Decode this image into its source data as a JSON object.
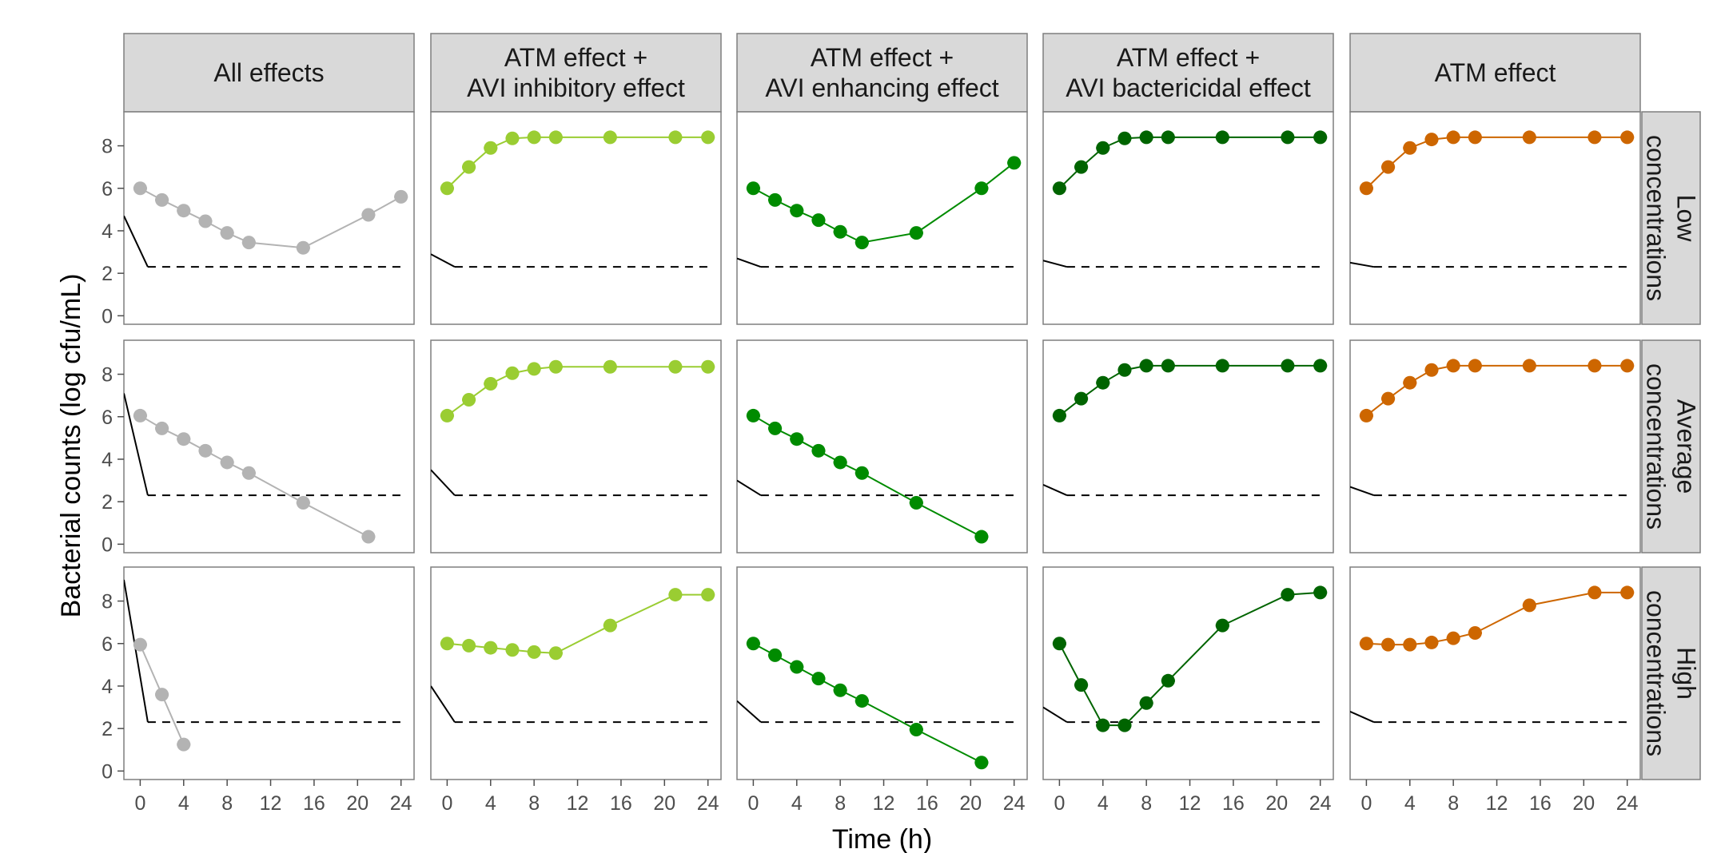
{
  "chart_data": {
    "type": "line",
    "xlabel": "Time (h)",
    "ylabel": "Bacterial counts (log cfu/mL)",
    "xlim": [
      -1.5,
      25.2
    ],
    "ylim": [
      -0.4,
      9.6
    ],
    "x_ticks": [
      0,
      4,
      8,
      12,
      16,
      20,
      24
    ],
    "y_ticks": [
      0,
      2,
      4,
      6,
      8
    ],
    "grid": false,
    "columns": [
      {
        "title_lines": [
          "All effects"
        ],
        "color": "#b3b3b3"
      },
      {
        "title_lines": [
          "ATM effect +",
          "AVI inhibitory effect"
        ],
        "color": "#9acd32"
      },
      {
        "title_lines": [
          "ATM effect +",
          "AVI enhancing effect"
        ],
        "color": "#008b00"
      },
      {
        "title_lines": [
          "ATM effect +",
          "AVI bactericidal effect"
        ],
        "color": "#006400"
      },
      {
        "title_lines": [
          "ATM effect"
        ],
        "color": "#cd6600"
      }
    ],
    "rows": [
      {
        "title_lines": [
          "Low",
          "concentrations"
        ]
      },
      {
        "title_lines": [
          "Average",
          "concentrations"
        ]
      },
      {
        "title_lines": [
          "High",
          "concentrations"
        ]
      }
    ],
    "detection_limit": 2.3,
    "x_times": [
      0,
      2,
      4,
      6,
      8,
      10,
      15,
      21,
      24
    ],
    "panels": [
      {
        "row": 0,
        "col": 0,
        "x": [
          0,
          2,
          4,
          6,
          8,
          10,
          15,
          21,
          24
        ],
        "y": [
          6.0,
          5.45,
          4.95,
          4.45,
          3.9,
          3.45,
          3.2,
          4.75,
          5.6
        ],
        "pk_line": [
          [
            -1.5,
            4.7
          ],
          [
            0.7,
            2.3
          ]
        ]
      },
      {
        "row": 0,
        "col": 1,
        "x": [
          0,
          2,
          4,
          6,
          8,
          10,
          15,
          21,
          24
        ],
        "y": [
          6.0,
          7.0,
          7.9,
          8.35,
          8.4,
          8.4,
          8.4,
          8.4,
          8.4
        ],
        "pk_line": [
          [
            -1.5,
            2.9
          ],
          [
            0.7,
            2.3
          ]
        ]
      },
      {
        "row": 0,
        "col": 2,
        "x": [
          0,
          2,
          4,
          6,
          8,
          10,
          15,
          21,
          24
        ],
        "y": [
          6.0,
          5.45,
          4.95,
          4.5,
          3.95,
          3.45,
          3.9,
          6.0,
          7.2
        ],
        "pk_line": [
          [
            -1.5,
            2.7
          ],
          [
            0.7,
            2.3
          ]
        ]
      },
      {
        "row": 0,
        "col": 3,
        "x": [
          0,
          2,
          4,
          6,
          8,
          10,
          15,
          21,
          24
        ],
        "y": [
          6.0,
          7.0,
          7.9,
          8.35,
          8.4,
          8.4,
          8.4,
          8.4,
          8.4
        ],
        "pk_line": [
          [
            -1.5,
            2.6
          ],
          [
            0.7,
            2.3
          ]
        ]
      },
      {
        "row": 0,
        "col": 4,
        "x": [
          0,
          2,
          4,
          6,
          8,
          10,
          15,
          21,
          24
        ],
        "y": [
          6.0,
          7.0,
          7.9,
          8.3,
          8.4,
          8.4,
          8.4,
          8.4,
          8.4
        ],
        "pk_line": [
          [
            -1.5,
            2.5
          ],
          [
            0.7,
            2.3
          ]
        ]
      },
      {
        "row": 1,
        "col": 0,
        "x": [
          0,
          2,
          4,
          6,
          8,
          10,
          15,
          21
        ],
        "y": [
          6.05,
          5.45,
          4.95,
          4.4,
          3.85,
          3.35,
          1.95,
          0.35
        ],
        "pk_line": [
          [
            -1.5,
            7.1
          ],
          [
            0.7,
            2.3
          ]
        ]
      },
      {
        "row": 1,
        "col": 1,
        "x": [
          0,
          2,
          4,
          6,
          8,
          10,
          15,
          21,
          24
        ],
        "y": [
          6.05,
          6.8,
          7.55,
          8.05,
          8.25,
          8.35,
          8.35,
          8.35,
          8.35
        ],
        "pk_line": [
          [
            -1.5,
            3.5
          ],
          [
            0.7,
            2.3
          ]
        ]
      },
      {
        "row": 1,
        "col": 2,
        "x": [
          0,
          2,
          4,
          6,
          8,
          10,
          15,
          21
        ],
        "y": [
          6.05,
          5.45,
          4.95,
          4.4,
          3.85,
          3.35,
          1.95,
          0.35
        ],
        "pk_line": [
          [
            -1.5,
            3.0
          ],
          [
            0.7,
            2.3
          ]
        ]
      },
      {
        "row": 1,
        "col": 3,
        "x": [
          0,
          2,
          4,
          6,
          8,
          10,
          15,
          21,
          24
        ],
        "y": [
          6.05,
          6.85,
          7.6,
          8.2,
          8.4,
          8.4,
          8.4,
          8.4,
          8.4
        ],
        "pk_line": [
          [
            -1.5,
            2.8
          ],
          [
            0.7,
            2.3
          ]
        ]
      },
      {
        "row": 1,
        "col": 4,
        "x": [
          0,
          2,
          4,
          6,
          8,
          10,
          15,
          21,
          24
        ],
        "y": [
          6.05,
          6.85,
          7.6,
          8.2,
          8.4,
          8.4,
          8.4,
          8.4,
          8.4
        ],
        "pk_line": [
          [
            -1.5,
            2.7
          ],
          [
            0.7,
            2.3
          ]
        ]
      },
      {
        "row": 2,
        "col": 0,
        "x": [
          0,
          2,
          4
        ],
        "y": [
          5.95,
          3.6,
          1.25
        ],
        "pk_line": [
          [
            -1.5,
            9.0
          ],
          [
            0.7,
            2.3
          ]
        ]
      },
      {
        "row": 2,
        "col": 1,
        "x": [
          0,
          2,
          4,
          6,
          8,
          10,
          15,
          21,
          24
        ],
        "y": [
          6.0,
          5.9,
          5.8,
          5.7,
          5.6,
          5.55,
          6.85,
          8.3,
          8.3
        ],
        "pk_line": [
          [
            -1.5,
            4.0
          ],
          [
            0.7,
            2.3
          ]
        ]
      },
      {
        "row": 2,
        "col": 2,
        "x": [
          0,
          2,
          4,
          6,
          8,
          10,
          15,
          21
        ],
        "y": [
          6.0,
          5.45,
          4.9,
          4.35,
          3.8,
          3.3,
          1.95,
          0.4
        ],
        "pk_line": [
          [
            -1.5,
            3.3
          ],
          [
            0.7,
            2.3
          ]
        ]
      },
      {
        "row": 2,
        "col": 3,
        "x": [
          0,
          2,
          4,
          6,
          8,
          10,
          15,
          21,
          24
        ],
        "y": [
          6.0,
          4.05,
          2.15,
          2.15,
          3.2,
          4.25,
          6.85,
          8.3,
          8.4
        ],
        "pk_line": [
          [
            -1.5,
            3.0
          ],
          [
            0.7,
            2.3
          ]
        ]
      },
      {
        "row": 2,
        "col": 4,
        "x": [
          0,
          2,
          4,
          6,
          8,
          10,
          15,
          21,
          24
        ],
        "y": [
          6.0,
          5.95,
          5.95,
          6.05,
          6.25,
          6.5,
          7.8,
          8.4,
          8.4
        ],
        "pk_line": [
          [
            -1.5,
            2.8
          ],
          [
            0.7,
            2.3
          ]
        ]
      }
    ]
  }
}
